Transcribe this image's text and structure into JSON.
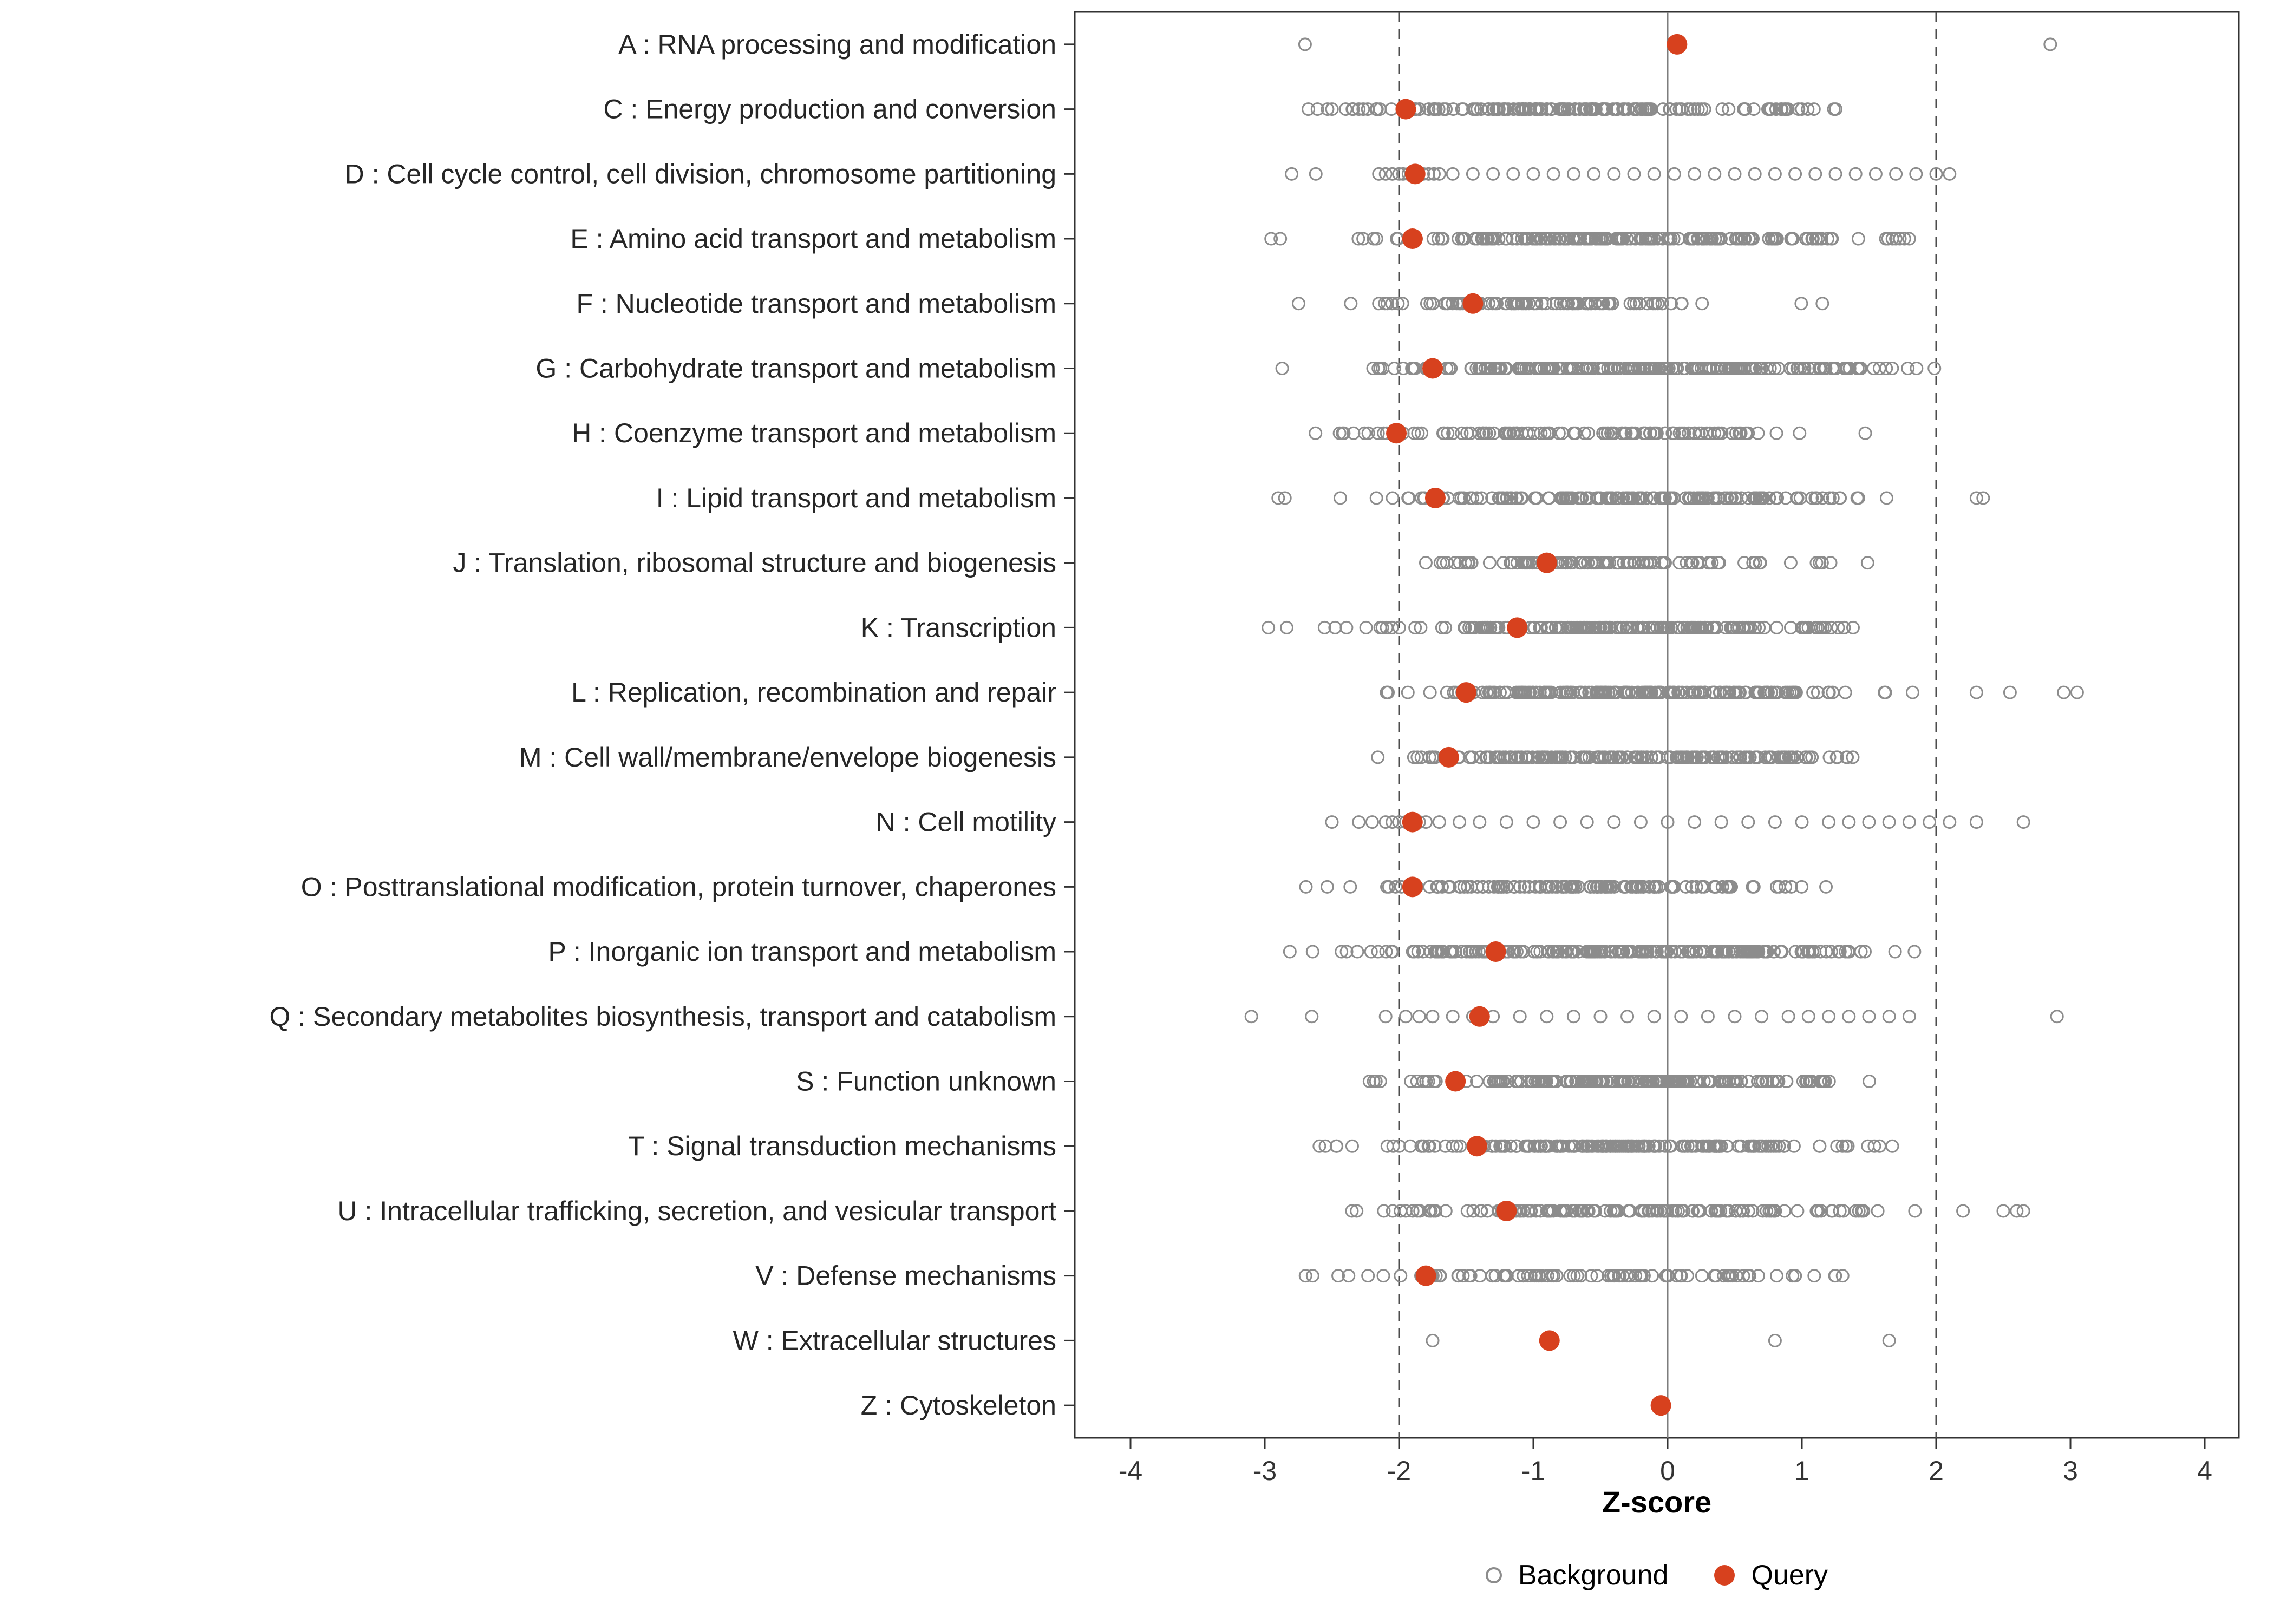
{
  "chart_data": {
    "type": "scatter",
    "variant": "horizontal-strip-dot-plot",
    "title": "",
    "xlabel": "Z-score",
    "ylabel": "",
    "x_ticks": [
      -4,
      -3,
      -2,
      -1,
      0,
      1,
      2,
      3,
      4
    ],
    "x_range": [
      -4.42,
      4.26
    ],
    "grid": "off",
    "legend_position": "bottom",
    "reference_lines": {
      "solid": [
        0
      ],
      "dashed": [
        -2,
        2
      ]
    },
    "colors": {
      "background": "#8c8c8c",
      "query": "#d7411e",
      "dashed_line": "#4d4d4d",
      "zero_line": "#7d7d7d",
      "panel_border": "#333333",
      "tick_text": "#333333",
      "category_text": "#262626"
    },
    "legend": [
      {
        "label": "Background",
        "marker": "open-circle"
      },
      {
        "label": "Query",
        "marker": "filled-circle"
      }
    ],
    "categories": [
      {
        "code": "A",
        "label": "A : RNA processing and modification",
        "query": 0.07,
        "background": {
          "points": [
            -2.7,
            2.85
          ]
        }
      },
      {
        "code": "C",
        "label": "C : Energy production and conversion",
        "query": -1.95,
        "background": {
          "n": 150,
          "mean": -0.55,
          "sd": 0.95,
          "min": -2.9,
          "max": 1.6
        }
      },
      {
        "code": "D",
        "label": "D : Cell cycle control, cell division, chromosome partitioning",
        "query": -1.88,
        "background": {
          "points": [
            -2.8,
            -2.62,
            -2.15,
            -2.1,
            -2.05,
            -2.0,
            -1.97,
            -1.93,
            -1.9,
            -1.86,
            -1.82,
            -1.78,
            -1.74,
            -1.7,
            -1.6,
            -1.45,
            -1.3,
            -1.15,
            -1.0,
            -0.85,
            -0.7,
            -0.55,
            -0.4,
            -0.25,
            -0.1,
            0.05,
            0.2,
            0.35,
            0.5,
            0.65,
            0.8,
            0.95,
            1.1,
            1.25,
            1.4,
            1.55,
            1.7,
            1.85,
            2.0,
            2.1
          ]
        }
      },
      {
        "code": "E",
        "label": "E : Amino acid transport and metabolism",
        "query": -1.9,
        "background": {
          "n": 190,
          "mean": -0.3,
          "sd": 1.0,
          "min": -3.1,
          "max": 2.0
        }
      },
      {
        "code": "F",
        "label": "F : Nucleotide transport and metabolism",
        "query": -1.45,
        "background": {
          "n": 90,
          "mean": -0.9,
          "sd": 0.85,
          "min": -2.9,
          "max": 1.35
        }
      },
      {
        "code": "G",
        "label": "G : Carbohydrate transport and metabolism",
        "query": -1.75,
        "background": {
          "n": 210,
          "mean": -0.2,
          "sd": 1.0,
          "min": -2.9,
          "max": 2.15
        }
      },
      {
        "code": "H",
        "label": "H : Coenzyme transport and metabolism",
        "query": -2.02,
        "background": {
          "n": 110,
          "mean": -0.75,
          "sd": 0.9,
          "min": -2.95,
          "max": 1.75
        }
      },
      {
        "code": "I",
        "label": "I : Lipid transport and metabolism",
        "query": -1.73,
        "background": {
          "n": 150,
          "mean": -0.2,
          "sd": 0.95,
          "min": -2.6,
          "max": 1.8,
          "outliers": [
            -2.9,
            -2.85,
            2.3,
            2.35
          ]
        }
      },
      {
        "code": "J",
        "label": "J : Translation, ribosomal structure and biogenesis",
        "query": -0.9,
        "background": {
          "n": 100,
          "mean": -0.55,
          "sd": 0.8,
          "min": -2.3,
          "max": 1.55
        }
      },
      {
        "code": "K",
        "label": "K : Transcription",
        "query": -1.12,
        "background": {
          "n": 180,
          "mean": -0.5,
          "sd": 0.95,
          "min": -3.05,
          "max": 1.7
        }
      },
      {
        "code": "L",
        "label": "L : Replication, recombination and repair",
        "query": -1.5,
        "background": {
          "n": 170,
          "mean": -0.25,
          "sd": 0.95,
          "min": -2.1,
          "max": 1.9,
          "outliers": [
            2.3,
            2.55,
            2.95,
            3.05
          ]
        }
      },
      {
        "code": "M",
        "label": "M : Cell wall/membrane/envelope biogenesis",
        "query": -1.63,
        "background": {
          "n": 190,
          "mean": -0.35,
          "sd": 0.9,
          "min": -2.3,
          "max": 1.55
        }
      },
      {
        "code": "N",
        "label": "N : Cell motility",
        "query": -1.9,
        "background": {
          "points": [
            -2.5,
            -2.3,
            -2.2,
            -2.1,
            -2.05,
            -2.0,
            -1.95,
            -1.9,
            -1.85,
            -1.8,
            -1.7,
            -1.55,
            -1.4,
            -1.2,
            -1.0,
            -0.8,
            -0.6,
            -0.4,
            -0.2,
            0.0,
            0.2,
            0.4,
            0.6,
            0.8,
            1.0,
            1.2,
            1.35,
            1.5,
            1.65,
            1.8,
            1.95,
            2.1,
            2.3,
            2.65
          ]
        }
      },
      {
        "code": "O",
        "label": "O : Posttranslational modification, protein turnover, chaperones",
        "query": -1.9,
        "background": {
          "n": 120,
          "mean": -0.7,
          "sd": 0.9,
          "min": -2.85,
          "max": 1.75
        }
      },
      {
        "code": "P",
        "label": "P : Inorganic ion transport and metabolism",
        "query": -1.28,
        "background": {
          "n": 210,
          "mean": -0.35,
          "sd": 1.05,
          "min": -3.05,
          "max": 1.95
        }
      },
      {
        "code": "Q",
        "label": "Q : Secondary metabolites biosynthesis, transport and catabolism",
        "query": -1.4,
        "background": {
          "points": [
            -3.1,
            -2.65,
            -2.1,
            -1.95,
            -1.85,
            -1.75,
            -1.6,
            -1.45,
            -1.3,
            -1.1,
            -0.9,
            -0.7,
            -0.5,
            -0.3,
            -0.1,
            0.1,
            0.3,
            0.5,
            0.7,
            0.9,
            1.05,
            1.2,
            1.35,
            1.5,
            1.65,
            1.8,
            2.9
          ]
        }
      },
      {
        "code": "S",
        "label": "S : Function unknown",
        "query": -1.58,
        "background": {
          "n": 190,
          "mean": -0.3,
          "sd": 0.9,
          "min": -2.4,
          "max": 1.65
        }
      },
      {
        "code": "T",
        "label": "T : Signal transduction mechanisms",
        "query": -1.42,
        "background": {
          "n": 170,
          "mean": -0.45,
          "sd": 0.95,
          "min": -2.85,
          "max": 1.7
        }
      },
      {
        "code": "U",
        "label": "U : Intracellular trafficking, secretion, and vesicular transport",
        "query": -1.2,
        "background": {
          "n": 140,
          "mean": -0.35,
          "sd": 1.0,
          "min": -2.45,
          "max": 1.9,
          "outliers": [
            2.2,
            2.5,
            2.6,
            2.65
          ]
        }
      },
      {
        "code": "V",
        "label": "V : Defense mechanisms",
        "query": -1.8,
        "background": {
          "n": 90,
          "mean": -0.6,
          "sd": 1.0,
          "min": -3.0,
          "max": 1.8
        }
      },
      {
        "code": "W",
        "label": "W : Extracellular structures",
        "query": -0.88,
        "background": {
          "points": [
            -1.75,
            0.8,
            1.65
          ]
        }
      },
      {
        "code": "Z",
        "label": "Z : Cytoskeleton",
        "query": -0.05,
        "background": {
          "points": []
        }
      }
    ]
  }
}
